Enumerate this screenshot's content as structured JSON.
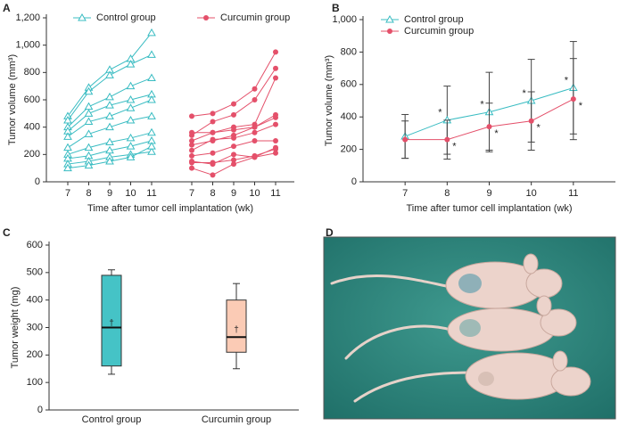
{
  "chart_data": [
    {
      "type": "line",
      "panel": "A",
      "ylabel": "Tumor volume (mm³)",
      "xlabel": "Time after tumor cell implantation (wk)",
      "categories": [
        "7",
        "8",
        "9",
        "10",
        "11"
      ],
      "ylim": [
        0,
        1200
      ],
      "yticks": [
        0,
        200,
        400,
        600,
        800,
        {
          "value": 1000,
          "label": "1,000"
        },
        {
          "value": 1200,
          "label": "1,200"
        }
      ],
      "legend": "top",
      "series": [
        {
          "name": "Control group",
          "color": "#39bcc2",
          "marker": "triangle",
          "lines": [
            [
              480,
              690,
              820,
              900,
              1090
            ],
            [
              450,
              660,
              780,
              860,
              930
            ],
            [
              400,
              550,
              620,
              700,
              760
            ],
            [
              370,
              500,
              560,
              600,
              640
            ],
            [
              330,
              440,
              480,
              540,
              600
            ],
            [
              250,
              350,
              400,
              450,
              480
            ],
            [
              200,
              250,
              290,
              320,
              360
            ],
            [
              170,
              190,
              230,
              260,
              300
            ],
            [
              130,
              150,
              180,
              200,
              220
            ],
            [
              100,
              120,
              150,
              180,
              260
            ]
          ]
        },
        {
          "name": "Curcumin group",
          "color": "#e4506a",
          "marker": "circle",
          "lines": [
            [
              480,
              500,
              570,
              680,
              950
            ],
            [
              340,
              440,
              490,
              600,
              830
            ],
            [
              300,
              360,
              400,
              420,
              760
            ],
            [
              360,
              360,
              380,
              400,
              490
            ],
            [
              270,
              300,
              340,
              400,
              470
            ],
            [
              230,
              310,
              320,
              360,
              420
            ],
            [
              190,
              210,
              260,
              300,
              300
            ],
            [
              150,
              130,
              200,
              180,
              250
            ],
            [
              100,
              50,
              130,
              180,
              210
            ],
            [
              140,
              140,
              160,
              190,
              240
            ]
          ]
        }
      ]
    },
    {
      "type": "line",
      "panel": "B",
      "ylabel": "Tumor volume (mm³)",
      "xlabel": "Time after tumor cell implantation (wk)",
      "categories": [
        "7",
        "8",
        "9",
        "10",
        "11"
      ],
      "ylim": [
        0,
        1000
      ],
      "yticks": [
        0,
        200,
        400,
        600,
        800,
        {
          "value": 1000,
          "label": "1,000"
        }
      ],
      "legend": "upper left",
      "series": [
        {
          "name": "Control group",
          "color": "#39bcc2",
          "marker": "triangle",
          "values": [
            280,
            380,
            430,
            500,
            580
          ],
          "errors": [
            135,
            210,
            245,
            255,
            285
          ],
          "annotations": [
            null,
            "*",
            "*",
            "*",
            "*"
          ]
        },
        {
          "name": "Curcumin group",
          "color": "#e4506a",
          "marker": "circle",
          "values": [
            260,
            260,
            340,
            375,
            510
          ],
          "errors": [
            115,
            120,
            145,
            180,
            250
          ],
          "annotations": [
            null,
            "*",
            "*",
            "*",
            "*"
          ]
        }
      ]
    },
    {
      "type": "box",
      "panel": "C",
      "ylabel": "Tumor weight (mg)",
      "ylim": [
        0,
        600
      ],
      "yticks": [
        0,
        100,
        200,
        300,
        400,
        500,
        600
      ],
      "mean_symbol": "†",
      "boxes": [
        {
          "name": "Control group",
          "color": "#45c3c6",
          "min": 130,
          "q1": 160,
          "median": 300,
          "q3": 490,
          "max": 510,
          "mean": 315
        },
        {
          "name": "Curcumin group",
          "color": "#fbcbb5",
          "min": 150,
          "q1": 210,
          "median": 265,
          "q3": 400,
          "max": 460,
          "mean": 290
        }
      ]
    }
  ],
  "photo": {
    "panel": "D"
  }
}
